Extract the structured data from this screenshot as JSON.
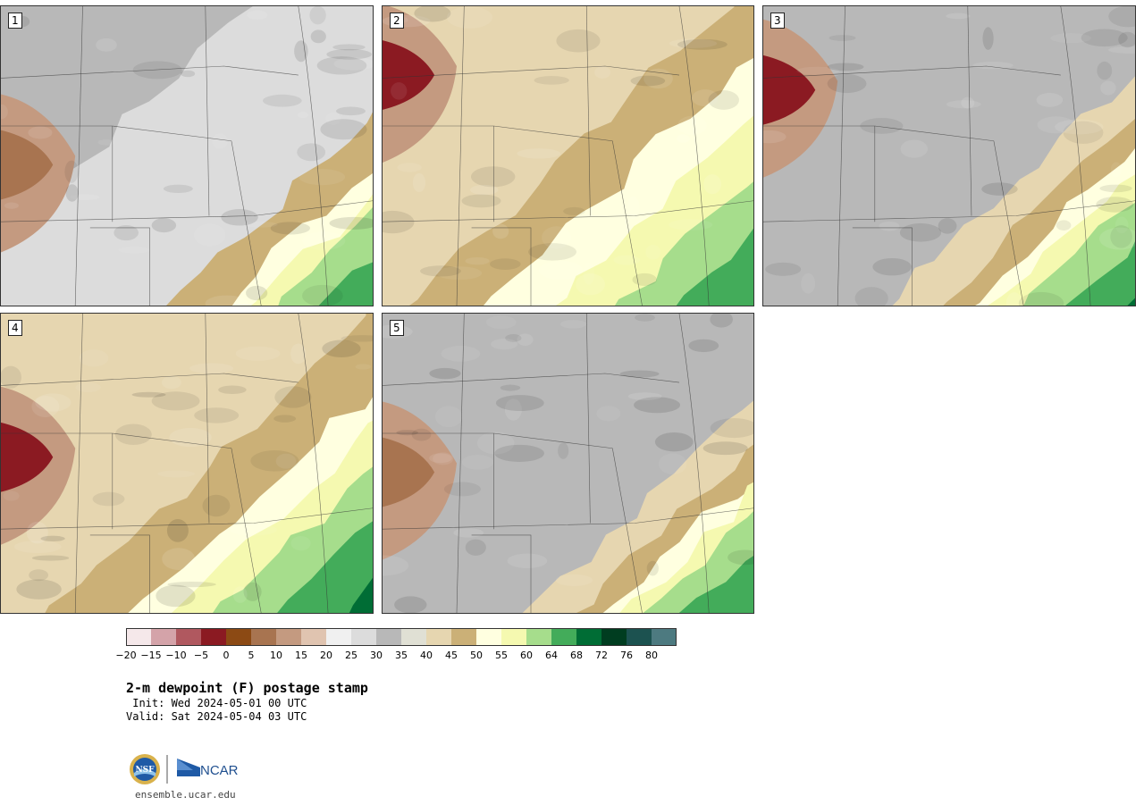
{
  "panels": [
    {
      "label": "1",
      "variant": 1
    },
    {
      "label": "2",
      "variant": 2
    },
    {
      "label": "3",
      "variant": 3
    },
    {
      "label": "4",
      "variant": 4
    },
    {
      "label": "5",
      "variant": 5
    }
  ],
  "colorbar": {
    "colors": [
      "#f5e8ea",
      "#d4a3a9",
      "#b0585f",
      "#8b1a22",
      "#8c4a14",
      "#a87450",
      "#c49a80",
      "#e0c4b0",
      "#f0f0f0",
      "#dcdcdc",
      "#b8b8b8",
      "#e0e0d4",
      "#e6d6b0",
      "#cbb077",
      "#ffffe0",
      "#f5f9b0",
      "#a6dd8c",
      "#43ac5a",
      "#006d35",
      "#003d20",
      "#1c5250",
      "#4d7a80"
    ],
    "ticks": [
      "−20",
      "−15",
      "−10",
      "−5",
      "0",
      "5",
      "10",
      "15",
      "20",
      "25",
      "30",
      "35",
      "40",
      "45",
      "50",
      "55",
      "60",
      "64",
      "68",
      "72",
      "76",
      "80"
    ]
  },
  "title": "2-m dewpoint (F) postage stamp",
  "init": " Init: Wed 2024-05-01 00 UTC",
  "valid": "Valid: Sat 2024-05-04 03 UTC",
  "logos": {
    "nsf": "NSF",
    "ncar": "NCAR"
  },
  "site": "ensemble.ucar.edu"
}
